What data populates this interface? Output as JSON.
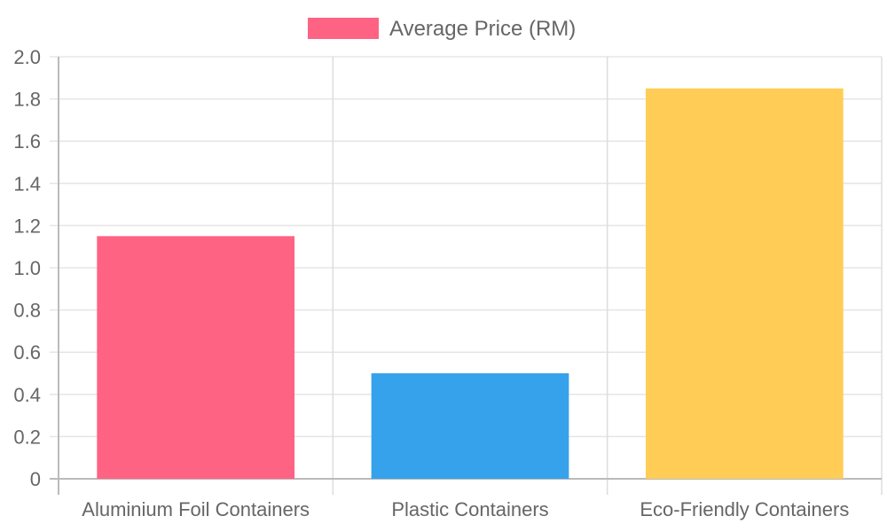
{
  "chart_data": {
    "type": "bar",
    "categories": [
      "Aluminium Foil Containers",
      "Plastic Containers",
      "Eco-Friendly Containers"
    ],
    "series": [
      {
        "name": "Average Price (RM)",
        "values": [
          1.15,
          0.5,
          1.85
        ],
        "colors": [
          "#ff6384",
          "#36a2eb",
          "#ffcd56"
        ]
      }
    ],
    "title": "",
    "xlabel": "",
    "ylabel": "",
    "ylim": [
      0,
      2.0
    ],
    "yticks": [
      "0",
      "0.2",
      "0.4",
      "0.6",
      "0.8",
      "1.0",
      "1.2",
      "1.4",
      "1.6",
      "1.8",
      "2.0"
    ],
    "grid": true,
    "legend_position": "top-center",
    "legend_color": "#ff6384"
  }
}
